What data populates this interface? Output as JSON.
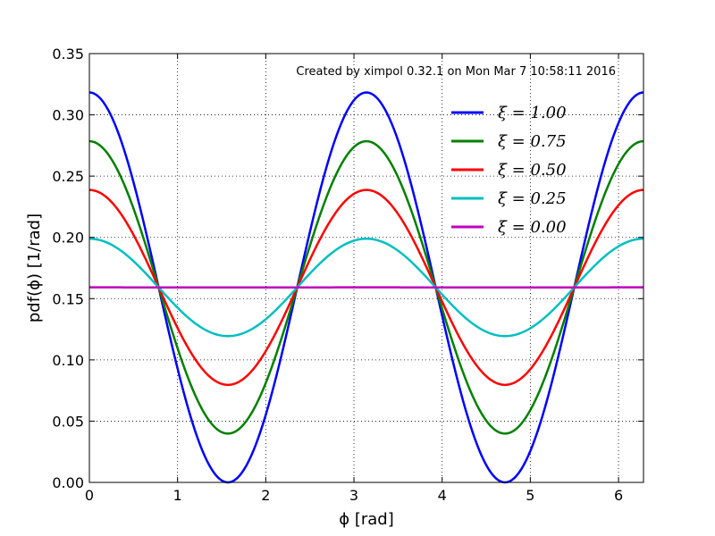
{
  "chart_data": {
    "type": "line",
    "annotation": "Created by ximpol 0.32.1 on Mon Mar  7 10:58:11 2016",
    "xlabel": "ϕ [rad]",
    "ylabel": "pdf(ϕ) [1/rad]",
    "xlim": [
      0,
      6.283185
    ],
    "ylim": [
      0,
      0.35
    ],
    "x_ticks": [
      0,
      1,
      2,
      3,
      4,
      5,
      6
    ],
    "x_tick_labels": [
      "0",
      "1",
      "2",
      "3",
      "4",
      "5",
      "6"
    ],
    "y_ticks": [
      0.0,
      0.05,
      0.1,
      0.15,
      0.2,
      0.25,
      0.3,
      0.35
    ],
    "y_tick_labels": [
      "0.00",
      "0.05",
      "0.10",
      "0.15",
      "0.20",
      "0.25",
      "0.30",
      "0.35"
    ],
    "grid": true,
    "legend_position": "top-right",
    "x_samples": [
      0,
      0.2618,
      0.5236,
      0.7854,
      1.0472,
      1.309,
      1.5708,
      1.8326,
      2.0944,
      2.3562,
      2.618,
      2.8798,
      3.1416,
      3.4034,
      3.6652,
      3.927,
      4.1888,
      4.4506,
      4.7124,
      4.9742,
      5.236,
      5.4978,
      5.7596,
      6.0214,
      6.2832
    ],
    "series": [
      {
        "name": "ξ = 1.00",
        "color": "#0000ff",
        "values": [
          0.3183,
          0.2976,
          0.2387,
          0.1592,
          0.0796,
          0.0213,
          0.0,
          0.0213,
          0.0796,
          0.1592,
          0.2387,
          0.2976,
          0.3183,
          0.2976,
          0.2387,
          0.1592,
          0.0796,
          0.0213,
          0.0,
          0.0213,
          0.0796,
          0.1592,
          0.2387,
          0.2976,
          0.3183
        ]
      },
      {
        "name": "ξ = 0.75",
        "color": "#008000",
        "values": [
          0.2785,
          0.263,
          0.2188,
          0.1592,
          0.0995,
          0.0553,
          0.0398,
          0.0553,
          0.0995,
          0.1592,
          0.2188,
          0.263,
          0.2785,
          0.263,
          0.2188,
          0.1592,
          0.0995,
          0.0553,
          0.0398,
          0.0553,
          0.0995,
          0.1592,
          0.2188,
          0.263,
          0.2785
        ]
      },
      {
        "name": "ξ = 0.50",
        "color": "#ff0000",
        "values": [
          0.2387,
          0.2284,
          0.1989,
          0.1592,
          0.1194,
          0.0899,
          0.0796,
          0.0899,
          0.1194,
          0.1592,
          0.1989,
          0.2284,
          0.2387,
          0.2284,
          0.1989,
          0.1592,
          0.1194,
          0.0899,
          0.0796,
          0.0899,
          0.1194,
          0.1592,
          0.1989,
          0.2284,
          0.2387
        ]
      },
      {
        "name": "ξ = 0.25",
        "color": "#00bfbf",
        "values": [
          0.1989,
          0.1938,
          0.179,
          0.1592,
          0.1393,
          0.1245,
          0.1194,
          0.1245,
          0.1393,
          0.1592,
          0.179,
          0.1938,
          0.1989,
          0.1938,
          0.179,
          0.1592,
          0.1393,
          0.1245,
          0.1194,
          0.1245,
          0.1393,
          0.1592,
          0.179,
          0.1938,
          0.1989
        ]
      },
      {
        "name": "ξ = 0.00",
        "color": "#bf00bf",
        "values": [
          0.1592,
          0.1592,
          0.1592,
          0.1592,
          0.1592,
          0.1592,
          0.1592,
          0.1592,
          0.1592,
          0.1592,
          0.1592,
          0.1592,
          0.1592,
          0.1592,
          0.1592,
          0.1592,
          0.1592,
          0.1592,
          0.1592,
          0.1592,
          0.1592,
          0.1592,
          0.1592,
          0.1592,
          0.1592
        ]
      }
    ]
  }
}
